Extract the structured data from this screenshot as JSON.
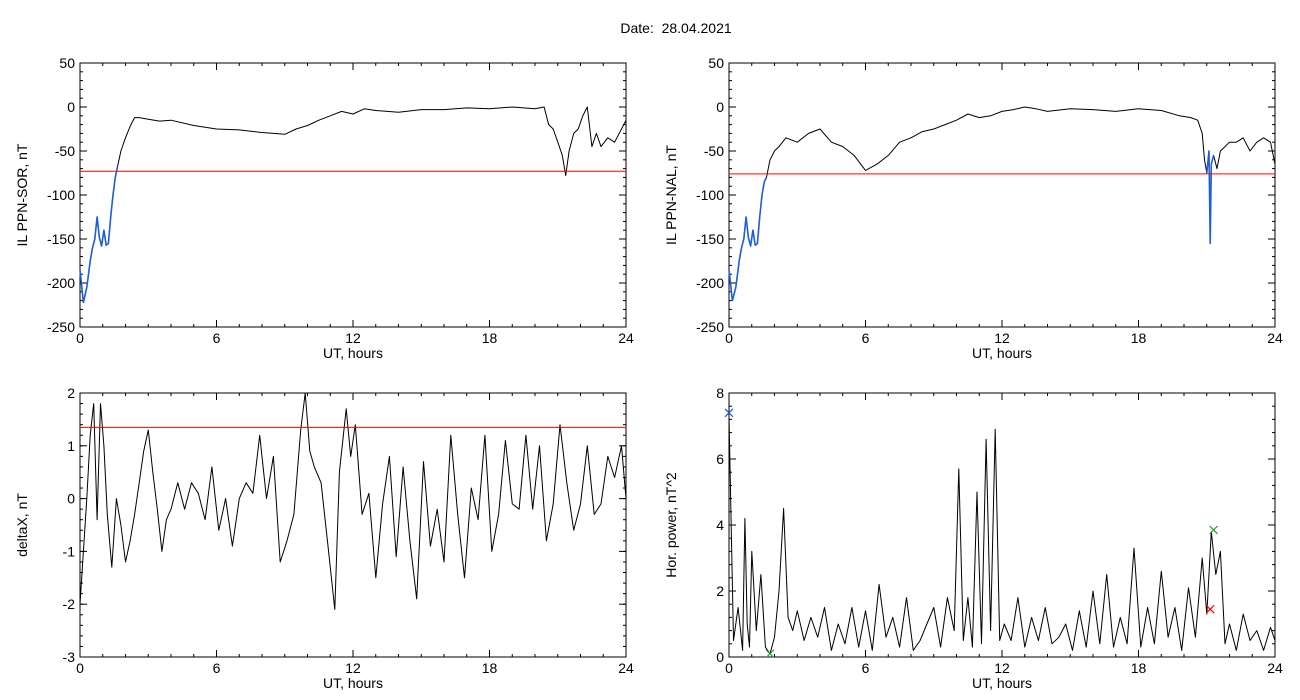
{
  "title": "Date:  28.04.2021",
  "colors": {
    "threshold": "#ff0000",
    "trace": "#000000",
    "highlight": "#1f5fd6",
    "marker_green": "#2ca02c",
    "marker_red": "#ff0000",
    "marker_blue": "#1f5fd6"
  },
  "chart_data": [
    {
      "type": "line",
      "xlabel": "UT, hours",
      "ylabel": "IL PPN-SOR, nT",
      "xlim": [
        0,
        24
      ],
      "ylim": [
        -250,
        50
      ],
      "xticks": [
        0,
        6,
        12,
        18,
        24
      ],
      "yticks": [
        -250,
        -200,
        -150,
        -100,
        -50,
        0,
        50
      ],
      "threshold": -73,
      "series": [
        {
          "x": [
            0,
            0.15,
            0.3,
            0.45,
            0.55,
            0.65,
            0.75,
            0.85,
            0.95,
            1.05,
            1.15,
            1.25,
            1.35,
            1.45,
            1.55,
            1.65,
            1.8,
            2.0,
            2.2,
            2.4,
            2.6,
            3.0,
            3.5,
            4,
            5,
            6,
            7,
            8,
            9,
            9.5,
            10,
            10.5,
            11,
            11.5,
            12,
            12.5,
            13,
            14,
            15,
            16,
            17,
            18,
            19,
            20,
            20.4,
            20.6,
            20.8,
            21.0,
            21.2,
            21.35,
            21.5,
            21.7,
            21.9,
            22.1,
            22.3,
            22.5,
            22.7,
            22.9,
            23.2,
            23.5,
            23.8,
            24
          ],
          "y": [
            -185,
            -222,
            -205,
            -175,
            -160,
            -150,
            -125,
            -148,
            -158,
            -140,
            -157,
            -155,
            -125,
            -100,
            -80,
            -68,
            -50,
            -35,
            -22,
            -12,
            -12,
            -14,
            -16,
            -15,
            -21,
            -25,
            -26,
            -29,
            -31,
            -25,
            -21,
            -15,
            -10,
            -5,
            -8,
            -2,
            -4,
            -6,
            -3,
            -3,
            -1,
            -2,
            0,
            -2,
            0,
            -20,
            -25,
            -40,
            -55,
            -78,
            -50,
            -30,
            -25,
            -10,
            0,
            -45,
            -30,
            -45,
            -35,
            -40,
            -25,
            -15
          ]
        },
        {
          "x": [
            0,
            0.15,
            0.3,
            0.45,
            0.55,
            0.65,
            0.75,
            0.85,
            0.95,
            1.05,
            1.15,
            1.25,
            1.35,
            1.45,
            1.55,
            1.65
          ],
          "y": [
            -185,
            -222,
            -205,
            -175,
            -160,
            -150,
            -125,
            -148,
            -158,
            -140,
            -157,
            -155,
            -125,
            -100,
            -80,
            -68
          ]
        }
      ]
    },
    {
      "type": "line",
      "xlabel": "UT, hours",
      "ylabel": "IL PPN-NAL, nT",
      "xlim": [
        0,
        24
      ],
      "ylim": [
        -250,
        50
      ],
      "xticks": [
        0,
        6,
        12,
        18,
        24
      ],
      "yticks": [
        -250,
        -200,
        -150,
        -100,
        -50,
        0,
        50
      ],
      "threshold": -76,
      "series": [
        {
          "x": [
            0,
            0.15,
            0.3,
            0.45,
            0.55,
            0.65,
            0.75,
            0.85,
            0.95,
            1.05,
            1.15,
            1.25,
            1.35,
            1.45,
            1.55,
            1.65,
            1.8,
            2.0,
            2.2,
            2.5,
            3.0,
            3.5,
            4.0,
            4.5,
            5.0,
            5.5,
            6.0,
            6.5,
            7.0,
            7.5,
            8.0,
            8.5,
            9.0,
            9.5,
            10,
            10.5,
            11,
            11.5,
            12,
            12.5,
            13,
            13.5,
            14,
            15,
            16,
            17,
            18,
            19,
            19.8,
            20.3,
            20.6,
            20.8,
            20.9,
            21.0,
            21.1,
            21.15,
            21.2,
            21.3,
            21.45,
            21.6,
            21.8,
            22.0,
            22.3,
            22.6,
            22.9,
            23.2,
            23.5,
            23.8,
            24
          ],
          "y": [
            -185,
            -220,
            -205,
            -175,
            -160,
            -150,
            -125,
            -148,
            -158,
            -140,
            -157,
            -155,
            -125,
            -100,
            -85,
            -80,
            -60,
            -50,
            -45,
            -35,
            -40,
            -30,
            -25,
            -40,
            -45,
            -55,
            -72,
            -65,
            -55,
            -40,
            -35,
            -28,
            -25,
            -20,
            -15,
            -8,
            -12,
            -10,
            -5,
            -3,
            0,
            -2,
            -5,
            -2,
            -3,
            -5,
            -2,
            -4,
            -10,
            -12,
            -15,
            -30,
            -60,
            -75,
            -50,
            -155,
            -65,
            -55,
            -70,
            -50,
            -45,
            -40,
            -40,
            -35,
            -50,
            -40,
            -35,
            -40,
            -65
          ]
        },
        {
          "x": [
            0,
            0.15,
            0.3,
            0.45,
            0.55,
            0.65,
            0.75,
            0.85,
            0.95,
            1.05,
            1.15,
            1.25,
            1.35,
            1.45,
            1.55,
            1.65
          ],
          "y": [
            -185,
            -220,
            -205,
            -175,
            -160,
            -150,
            -125,
            -148,
            -158,
            -140,
            -157,
            -155,
            -125,
            -100,
            -85,
            -80
          ]
        },
        {
          "x": [
            21.0,
            21.1,
            21.15,
            21.2,
            21.3
          ],
          "y": [
            -75,
            -50,
            -155,
            -65,
            -55
          ]
        }
      ]
    },
    {
      "type": "line",
      "xlabel": "UT, hours",
      "ylabel": "deltaX, nT",
      "xlim": [
        0,
        24
      ],
      "ylim": [
        -3,
        2
      ],
      "xticks": [
        0,
        6,
        12,
        18,
        24
      ],
      "yticks": [
        -3,
        -2,
        -1,
        0,
        1,
        2
      ],
      "threshold": 1.35,
      "series": [
        {
          "x": [
            0,
            0.15,
            0.3,
            0.45,
            0.6,
            0.75,
            0.9,
            1.05,
            1.2,
            1.4,
            1.6,
            1.8,
            2.0,
            2.2,
            2.4,
            2.6,
            2.8,
            3.0,
            3.2,
            3.4,
            3.6,
            3.8,
            4.0,
            4.3,
            4.6,
            4.9,
            5.2,
            5.5,
            5.8,
            6.1,
            6.4,
            6.7,
            7.0,
            7.3,
            7.6,
            7.9,
            8.2,
            8.5,
            8.8,
            9.1,
            9.4,
            9.7,
            9.9,
            10.1,
            10.3,
            10.6,
            10.9,
            11.2,
            11.4,
            11.7,
            11.9,
            12.1,
            12.4,
            12.7,
            13.0,
            13.3,
            13.6,
            13.9,
            14.2,
            14.5,
            14.8,
            15.1,
            15.4,
            15.7,
            16.0,
            16.3,
            16.6,
            16.9,
            17.2,
            17.5,
            17.8,
            18.1,
            18.4,
            18.7,
            19.0,
            19.3,
            19.6,
            19.9,
            20.2,
            20.5,
            20.8,
            21.1,
            21.4,
            21.7,
            22.0,
            22.3,
            22.6,
            22.9,
            23.2,
            23.5,
            23.8,
            24
          ],
          "y": [
            -2.0,
            -1.0,
            0.0,
            1.2,
            1.8,
            -0.4,
            1.8,
            1.0,
            -0.3,
            -1.3,
            0.0,
            -0.5,
            -1.2,
            -0.8,
            -0.3,
            0.3,
            0.9,
            1.3,
            0.5,
            -0.2,
            -1.0,
            -0.4,
            -0.2,
            0.3,
            -0.2,
            0.3,
            0.1,
            -0.4,
            0.6,
            -0.6,
            0.0,
            -0.9,
            0.0,
            0.3,
            0.1,
            1.2,
            0.0,
            0.8,
            -1.2,
            -0.8,
            -0.3,
            1.3,
            2.0,
            0.9,
            0.6,
            0.3,
            -0.9,
            -2.1,
            0.5,
            1.7,
            0.8,
            1.4,
            -0.3,
            0.1,
            -1.5,
            -0.1,
            0.8,
            -1.1,
            0.6,
            -0.8,
            -1.9,
            0.7,
            -0.9,
            -0.2,
            -1.2,
            1.2,
            -0.3,
            -1.5,
            0.2,
            -0.4,
            1.2,
            -1.0,
            -0.3,
            1.1,
            -0.1,
            -0.2,
            1.2,
            -0.2,
            1.0,
            -0.8,
            -0.1,
            1.4,
            0.3,
            -0.6,
            -0.1,
            1.0,
            -0.3,
            -0.1,
            0.8,
            0.4,
            1.0,
            0.0
          ]
        }
      ]
    },
    {
      "type": "line",
      "xlabel": "UT, hours",
      "ylabel": "Hor. power, nT^2",
      "xlim": [
        0,
        24
      ],
      "ylim": [
        0,
        8
      ],
      "xticks": [
        0,
        6,
        12,
        18,
        24
      ],
      "yticks": [
        0,
        2,
        4,
        6,
        8
      ],
      "series": [
        {
          "x": [
            0,
            0.2,
            0.4,
            0.6,
            0.7,
            0.8,
            0.9,
            1.0,
            1.2,
            1.4,
            1.6,
            1.8,
            2.0,
            2.2,
            2.4,
            2.6,
            2.8,
            3.0,
            3.3,
            3.6,
            3.9,
            4.2,
            4.5,
            4.8,
            5.1,
            5.4,
            5.7,
            6.0,
            6.3,
            6.6,
            6.9,
            7.2,
            7.5,
            7.8,
            8.1,
            8.4,
            8.7,
            9.0,
            9.3,
            9.6,
            9.9,
            10.1,
            10.3,
            10.5,
            10.7,
            10.9,
            11.1,
            11.3,
            11.5,
            11.7,
            11.9,
            12.1,
            12.4,
            12.7,
            13.0,
            13.3,
            13.6,
            13.9,
            14.2,
            14.5,
            14.8,
            15.1,
            15.4,
            15.7,
            16.0,
            16.3,
            16.6,
            16.9,
            17.2,
            17.5,
            17.8,
            18.1,
            18.4,
            18.7,
            19.0,
            19.3,
            19.6,
            19.9,
            20.2,
            20.5,
            20.8,
            21.0,
            21.2,
            21.4,
            21.6,
            21.8,
            22.0,
            22.3,
            22.6,
            22.9,
            23.2,
            23.5,
            23.8,
            24
          ],
          "y": [
            7.3,
            0.5,
            1.5,
            0.2,
            4.2,
            1.0,
            0.3,
            3.2,
            0.8,
            2.5,
            0.3,
            0.1,
            0.6,
            2.0,
            4.5,
            1.2,
            0.8,
            1.4,
            0.5,
            1.2,
            0.6,
            1.5,
            0.2,
            1.0,
            0.4,
            1.5,
            0.3,
            1.4,
            0.2,
            2.2,
            0.6,
            1.2,
            0.3,
            1.8,
            0.2,
            0.5,
            1.0,
            1.5,
            0.3,
            1.8,
            0.8,
            5.7,
            0.5,
            1.8,
            0.3,
            5.0,
            0.4,
            6.6,
            0.8,
            6.9,
            0.5,
            1.0,
            0.5,
            1.8,
            0.3,
            1.2,
            0.5,
            1.5,
            0.4,
            0.6,
            1.0,
            0.2,
            1.4,
            0.3,
            2.0,
            0.4,
            2.5,
            0.3,
            1.2,
            0.4,
            3.3,
            0.3,
            1.5,
            0.4,
            2.6,
            0.6,
            1.5,
            0.2,
            2.1,
            0.6,
            3.0,
            1.3,
            3.8,
            2.5,
            3.2,
            0.4,
            1.0,
            0.2,
            1.3,
            0.5,
            0.8,
            0.2,
            0.9,
            0.5
          ]
        }
      ],
      "markers": [
        {
          "x": 0,
          "y": 7.4,
          "color": "blue"
        },
        {
          "x": 1.8,
          "y": 0.1,
          "color": "green"
        },
        {
          "x": 21.3,
          "y": 3.85,
          "color": "green"
        },
        {
          "x": 21.15,
          "y": 1.45,
          "color": "red"
        }
      ]
    }
  ]
}
